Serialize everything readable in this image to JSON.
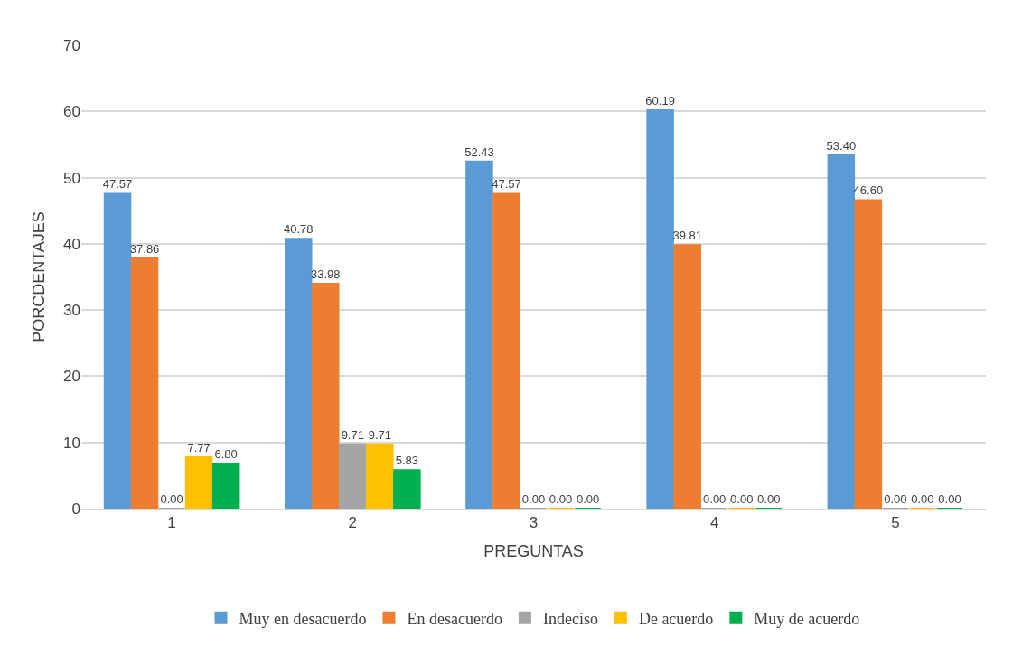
{
  "chart_data": {
    "type": "bar",
    "xlabel": "PREGUNTAS",
    "ylabel": "PORCDENTAJES",
    "categories": [
      "1",
      "2",
      "3",
      "4",
      "5"
    ],
    "series": [
      {
        "name": "Muy en desacuerdo",
        "color": "#5b9bd5",
        "values": [
          47.57,
          40.78,
          52.43,
          60.19,
          53.4
        ],
        "value_labels": [
          "47.57",
          "40.78",
          "52.43",
          "60.19",
          "53.40"
        ]
      },
      {
        "name": "En desacuerdo",
        "color": "#ed7d31",
        "values": [
          37.86,
          33.98,
          47.57,
          39.81,
          46.6
        ],
        "value_labels": [
          "37.86",
          "33.98",
          "47.57",
          "39.81",
          "46.60"
        ]
      },
      {
        "name": "Indeciso",
        "color": "#a5a5a5",
        "values": [
          0.0,
          9.71,
          0.0,
          0.0,
          0.0
        ],
        "value_labels": [
          "0.00",
          "9.71",
          "0.00",
          "0.00",
          "0.00"
        ]
      },
      {
        "name": "De acuerdo",
        "color": "#ffc000",
        "values": [
          7.77,
          9.71,
          0.0,
          0.0,
          0.0
        ],
        "value_labels": [
          "7.77",
          "9.71",
          "0.00",
          "0.00",
          "0.00"
        ]
      },
      {
        "name": "Muy de acuerdo",
        "color": "#00b050",
        "values": [
          6.8,
          5.83,
          0.0,
          0.0,
          0.0
        ],
        "value_labels": [
          "6.80",
          "5.83",
          "0.00",
          "0.00",
          "0.00"
        ]
      }
    ],
    "ylim": [
      0,
      70
    ],
    "yticks": [
      0,
      10,
      20,
      30,
      40,
      50,
      60,
      70
    ],
    "grid": "y",
    "legend": "bottom"
  }
}
